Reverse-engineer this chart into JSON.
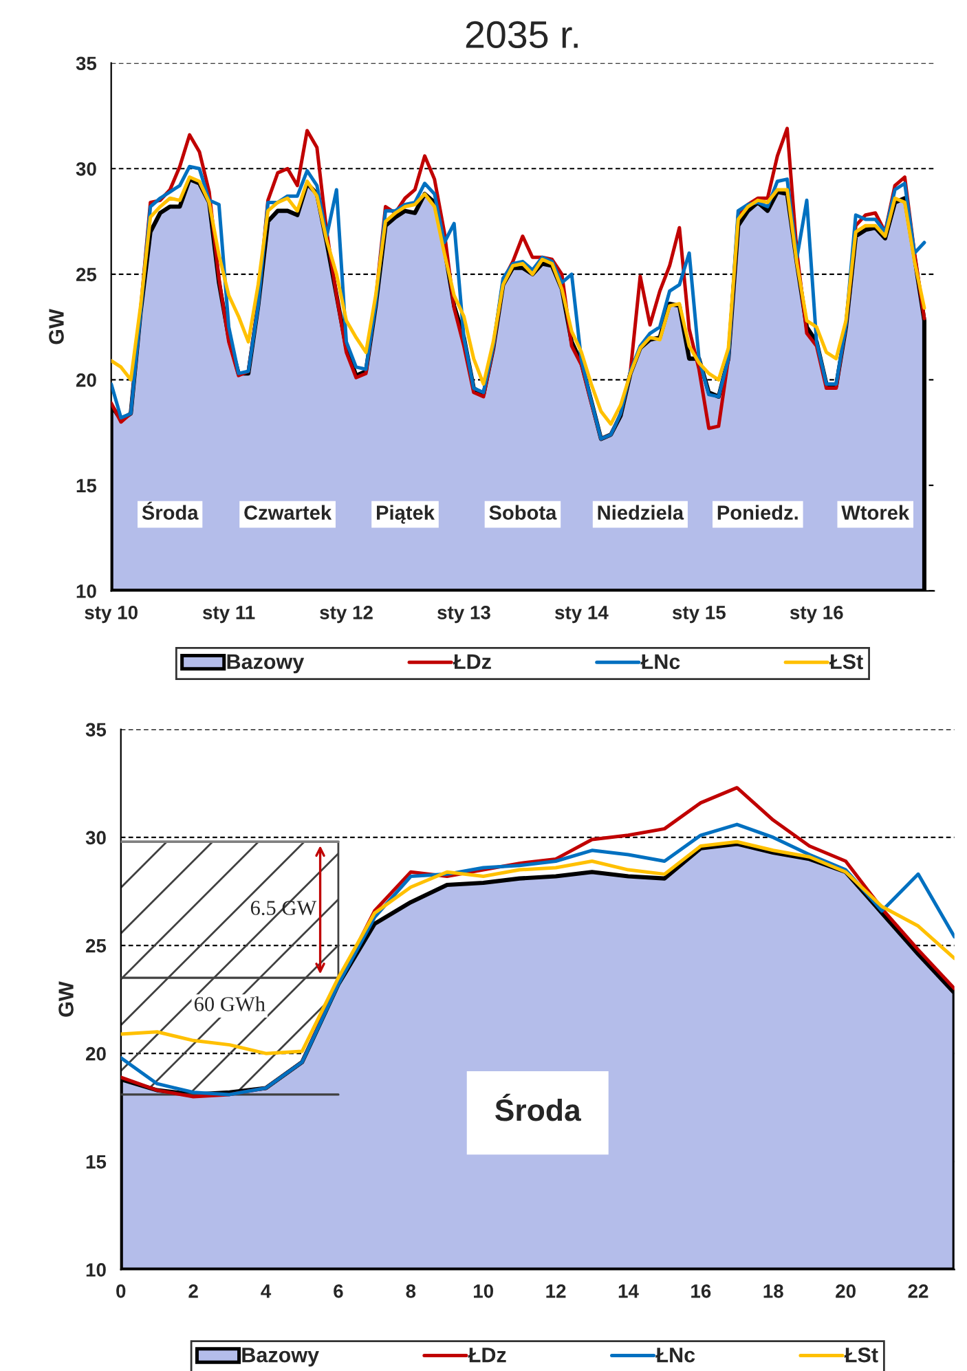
{
  "chart_data": [
    {
      "type": "area",
      "title": "2035 r.",
      "ylabel": "GW",
      "xlim": [
        "2035-01-10T00:00",
        "2035-01-17T00:00"
      ],
      "xticks": [
        {
          "value": "2035-01-10",
          "label": "sty 10"
        },
        {
          "value": "2035-01-11",
          "label": "sty 11"
        },
        {
          "value": "2035-01-12",
          "label": "sty 12"
        },
        {
          "value": "2035-01-13",
          "label": "sty 13"
        },
        {
          "value": "2035-01-14",
          "label": "sty 14"
        },
        {
          "value": "2035-01-15",
          "label": "sty 15"
        },
        {
          "value": "2035-01-16",
          "label": "sty 16"
        }
      ],
      "ylim": [
        10,
        35
      ],
      "yticks": [
        10,
        15,
        20,
        25,
        30,
        35
      ],
      "grid": "y",
      "legend": "bottom",
      "x": [
        "2035-01-10T00:00",
        "2035-01-10T02:00",
        "2035-01-10T04:00",
        "2035-01-10T06:00",
        "2035-01-10T08:00",
        "2035-01-10T10:00",
        "2035-01-10T12:00",
        "2035-01-10T14:00",
        "2035-01-10T16:00",
        "2035-01-10T18:00",
        "2035-01-10T20:00",
        "2035-01-10T22:00",
        "2035-01-11T00:00",
        "2035-01-11T02:00",
        "2035-01-11T04:00",
        "2035-01-11T06:00",
        "2035-01-11T08:00",
        "2035-01-11T10:00",
        "2035-01-11T12:00",
        "2035-01-11T14:00",
        "2035-01-11T16:00",
        "2035-01-11T18:00",
        "2035-01-11T20:00",
        "2035-01-11T22:00",
        "2035-01-12T00:00",
        "2035-01-12T02:00",
        "2035-01-12T04:00",
        "2035-01-12T06:00",
        "2035-01-12T08:00",
        "2035-01-12T10:00",
        "2035-01-12T12:00",
        "2035-01-12T14:00",
        "2035-01-12T16:00",
        "2035-01-12T18:00",
        "2035-01-12T20:00",
        "2035-01-12T22:00",
        "2035-01-13T00:00",
        "2035-01-13T02:00",
        "2035-01-13T04:00",
        "2035-01-13T06:00",
        "2035-01-13T08:00",
        "2035-01-13T10:00",
        "2035-01-13T12:00",
        "2035-01-13T14:00",
        "2035-01-13T16:00",
        "2035-01-13T18:00",
        "2035-01-13T20:00",
        "2035-01-13T22:00",
        "2035-01-14T00:00",
        "2035-01-14T02:00",
        "2035-01-14T04:00",
        "2035-01-14T06:00",
        "2035-01-14T08:00",
        "2035-01-14T10:00",
        "2035-01-14T12:00",
        "2035-01-14T14:00",
        "2035-01-14T16:00",
        "2035-01-14T18:00",
        "2035-01-14T20:00",
        "2035-01-14T22:00",
        "2035-01-15T00:00",
        "2035-01-15T02:00",
        "2035-01-15T04:00",
        "2035-01-15T06:00",
        "2035-01-15T08:00",
        "2035-01-15T10:00",
        "2035-01-15T12:00",
        "2035-01-15T14:00",
        "2035-01-15T16:00",
        "2035-01-15T18:00",
        "2035-01-15T20:00",
        "2035-01-15T22:00",
        "2035-01-16T00:00",
        "2035-01-16T02:00",
        "2035-01-16T04:00",
        "2035-01-16T06:00",
        "2035-01-16T08:00",
        "2035-01-16T10:00",
        "2035-01-16T12:00",
        "2035-01-16T14:00",
        "2035-01-16T16:00",
        "2035-01-16T18:00",
        "2035-01-16T20:00",
        "2035-01-16T22:00"
      ],
      "series": [
        {
          "name": "Bazowy",
          "color": "#b4bdea",
          "values": [
            18.8,
            18.1,
            18.4,
            23.2,
            27.0,
            27.9,
            28.2,
            28.2,
            29.5,
            29.3,
            28.4,
            24.6,
            22.0,
            20.3,
            20.3,
            23.5,
            27.5,
            28.0,
            28.0,
            27.8,
            29.3,
            28.8,
            26.5,
            24.0,
            21.5,
            20.2,
            20.4,
            23.5,
            27.3,
            27.7,
            28.0,
            27.9,
            28.8,
            28.4,
            26.3,
            23.5,
            22.0,
            19.6,
            19.3,
            21.5,
            24.5,
            25.3,
            25.3,
            25.0,
            25.5,
            25.4,
            24.3,
            21.8,
            20.8,
            19.0,
            17.2,
            17.4,
            18.3,
            20.3,
            21.5,
            21.9,
            22.0,
            23.6,
            23.5,
            21.0,
            21.0,
            19.4,
            19.2,
            21.0,
            27.3,
            28.0,
            28.4,
            28.0,
            28.9,
            28.8,
            25.5,
            22.5,
            21.8,
            19.8,
            19.7,
            22.5,
            26.8,
            27.1,
            27.2,
            26.7,
            28.4,
            28.6,
            25.8,
            22.8
          ]
        },
        {
          "name": "ŁDz",
          "type": "line",
          "color": "#c00000",
          "values": [
            18.9,
            18.0,
            18.4,
            23.3,
            28.4,
            28.5,
            29.0,
            30.1,
            31.6,
            30.8,
            28.9,
            24.8,
            21.8,
            20.2,
            20.4,
            23.6,
            28.5,
            29.8,
            30.0,
            29.2,
            31.8,
            31.0,
            27.0,
            24.0,
            21.3,
            20.1,
            20.3,
            23.8,
            28.2,
            27.9,
            28.6,
            29.0,
            30.6,
            29.5,
            27.0,
            23.4,
            21.6,
            19.4,
            19.2,
            21.5,
            24.7,
            25.6,
            26.8,
            25.8,
            25.8,
            25.7,
            25.0,
            21.6,
            20.7,
            18.9,
            17.2,
            17.4,
            18.4,
            20.4,
            24.9,
            22.6,
            24.2,
            25.4,
            27.2,
            22.4,
            20.5,
            17.7,
            17.8,
            21.0,
            27.8,
            28.3,
            28.6,
            28.6,
            30.6,
            31.9,
            26.0,
            22.2,
            21.6,
            19.6,
            19.6,
            22.6,
            27.3,
            27.8,
            27.9,
            27.0,
            29.2,
            29.6,
            26.0,
            22.9
          ]
        },
        {
          "name": "ŁNc",
          "type": "line",
          "color": "#0070c0",
          "values": [
            19.8,
            18.2,
            18.4,
            23.2,
            28.2,
            28.6,
            28.9,
            29.2,
            30.1,
            30.0,
            28.5,
            28.3,
            22.5,
            20.3,
            20.4,
            23.5,
            28.4,
            28.4,
            28.7,
            28.7,
            29.9,
            29.2,
            26.8,
            29.0,
            21.8,
            20.6,
            20.5,
            23.6,
            28.0,
            28.0,
            28.3,
            28.4,
            29.3,
            28.8,
            26.5,
            27.4,
            22.0,
            19.6,
            19.4,
            21.6,
            24.8,
            25.5,
            25.6,
            25.2,
            25.8,
            25.6,
            24.6,
            25.0,
            20.9,
            19.0,
            17.2,
            17.4,
            18.4,
            20.4,
            21.6,
            22.2,
            22.5,
            24.2,
            24.5,
            26.0,
            21.0,
            19.3,
            19.2,
            21.0,
            28.0,
            28.3,
            28.4,
            28.2,
            29.4,
            29.5,
            25.8,
            28.5,
            21.8,
            19.8,
            19.8,
            22.6,
            27.8,
            27.6,
            27.6,
            27.0,
            29.0,
            29.3,
            26.0,
            26.5
          ]
        },
        {
          "name": "ŁSt",
          "type": "line",
          "color": "#ffc000",
          "values": [
            20.9,
            20.6,
            20.0,
            23.5,
            27.7,
            28.2,
            28.6,
            28.5,
            29.6,
            29.4,
            28.4,
            25.9,
            24.0,
            23.0,
            21.8,
            24.5,
            28.0,
            28.4,
            28.6,
            28.0,
            29.4,
            28.7,
            26.6,
            25.0,
            22.8,
            22.0,
            21.3,
            24.0,
            27.5,
            27.9,
            28.2,
            28.3,
            28.8,
            28.2,
            26.0,
            24.0,
            23.0,
            21.0,
            19.8,
            21.8,
            24.5,
            25.4,
            25.5,
            25.0,
            25.7,
            25.5,
            24.3,
            22.3,
            21.3,
            19.8,
            18.5,
            17.9,
            18.8,
            20.3,
            21.5,
            22.0,
            21.9,
            23.5,
            23.6,
            21.6,
            20.8,
            20.3,
            20.0,
            21.5,
            27.6,
            28.2,
            28.5,
            28.4,
            29.0,
            29.0,
            25.5,
            22.8,
            22.5,
            21.3,
            21.0,
            22.8,
            27.0,
            27.3,
            27.3,
            26.8,
            28.6,
            28.4,
            25.6,
            23.4
          ]
        }
      ],
      "annotations": [
        "Środa",
        "Czwartek",
        "Piątek",
        "Sobota",
        "Niedziela",
        "Poniedz.",
        "Wtorek"
      ]
    },
    {
      "type": "area",
      "ylabel": "GW",
      "xlim": [
        0,
        23
      ],
      "xticks": [
        0,
        2,
        4,
        6,
        8,
        10,
        12,
        14,
        16,
        18,
        20,
        22
      ],
      "ylim": [
        10,
        35
      ],
      "yticks": [
        10,
        15,
        20,
        25,
        30,
        35
      ],
      "grid": "y",
      "legend": "bottom",
      "x": [
        0,
        1,
        2,
        3,
        4,
        5,
        6,
        7,
        8,
        9,
        10,
        11,
        12,
        13,
        14,
        15,
        16,
        17,
        18,
        19,
        20,
        21,
        22,
        23
      ],
      "series": [
        {
          "name": "Bazowy",
          "color": "#b4bdea",
          "values": [
            18.8,
            18.3,
            18.1,
            18.2,
            18.4,
            19.6,
            23.2,
            26.0,
            27.0,
            27.8,
            27.9,
            28.1,
            28.2,
            28.4,
            28.2,
            28.1,
            29.5,
            29.7,
            29.3,
            29.0,
            28.4,
            26.5,
            24.6,
            22.8
          ]
        },
        {
          "name": "ŁDz",
          "type": "line",
          "color": "#c00000",
          "values": [
            18.9,
            18.3,
            18.0,
            18.1,
            18.4,
            19.6,
            23.3,
            26.6,
            28.4,
            28.2,
            28.5,
            28.8,
            29.0,
            29.9,
            30.1,
            30.4,
            31.6,
            32.3,
            30.8,
            29.6,
            28.9,
            26.7,
            24.8,
            23.0
          ]
        },
        {
          "name": "ŁNc",
          "type": "line",
          "color": "#0070c0",
          "values": [
            19.8,
            18.6,
            18.2,
            18.1,
            18.4,
            19.6,
            23.2,
            26.3,
            28.2,
            28.3,
            28.6,
            28.7,
            28.9,
            29.4,
            29.2,
            28.9,
            30.1,
            30.6,
            30.0,
            29.2,
            28.5,
            26.6,
            28.3,
            25.4
          ]
        },
        {
          "name": "ŁSt",
          "type": "line",
          "color": "#ffc000",
          "values": [
            20.9,
            21.0,
            20.6,
            20.4,
            20.0,
            20.1,
            23.5,
            26.5,
            27.7,
            28.4,
            28.2,
            28.5,
            28.6,
            28.9,
            28.5,
            28.3,
            29.6,
            29.8,
            29.4,
            29.1,
            28.4,
            26.8,
            25.9,
            24.4
          ]
        }
      ],
      "bands": [
        {
          "axis": "x",
          "from": 0,
          "to": 6,
          "color": "#404040"
        }
      ],
      "ref_lines": [
        {
          "axis": "y",
          "value": 29.8,
          "color": "#808080"
        },
        {
          "axis": "y",
          "value": 23.5,
          "color": "#404040"
        },
        {
          "axis": "y",
          "value": 18.1,
          "color": "#404040"
        }
      ],
      "annotations": [
        "6.5 GW",
        "60 GWh",
        "Środa"
      ]
    }
  ]
}
